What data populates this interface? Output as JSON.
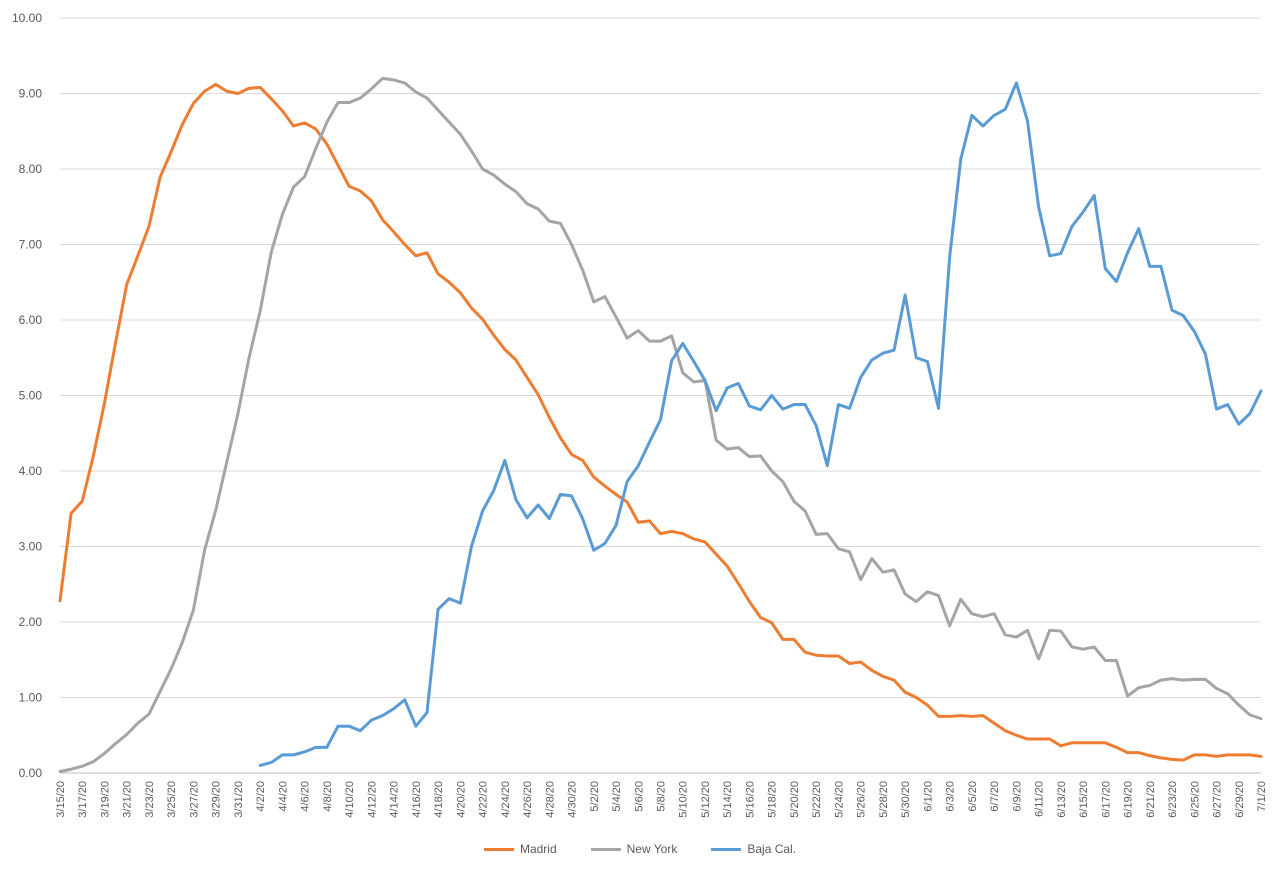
{
  "chart_data": {
    "type": "line",
    "title": "",
    "xlabel": "",
    "ylabel": "",
    "ylim": [
      0,
      10
    ],
    "y_ticks": [
      "0.00",
      "1.00",
      "2.00",
      "3.00",
      "4.00",
      "5.00",
      "6.00",
      "7.00",
      "8.00",
      "9.00",
      "10.00"
    ],
    "grid": "horizontal",
    "legend_position": "bottom",
    "x_start": "3/15/20",
    "x_tick_labels": [
      "3/15/20",
      "3/17/20",
      "3/19/20",
      "3/21/20",
      "3/23/20",
      "3/25/20",
      "3/27/20",
      "3/29/20",
      "3/31/20",
      "4/2/20",
      "4/4/20",
      "4/6/20",
      "4/8/20",
      "4/10/20",
      "4/12/20",
      "4/14/20",
      "4/16/20",
      "4/18/20",
      "4/20/20",
      "4/22/20",
      "4/24/20",
      "4/26/20",
      "4/28/20",
      "4/30/20",
      "5/2/20",
      "5/4/20",
      "5/6/20",
      "5/8/20",
      "5/10/20",
      "5/12/20",
      "5/14/20",
      "5/16/20",
      "5/18/20",
      "5/20/20",
      "5/22/20",
      "5/24/20",
      "5/26/20",
      "5/28/20",
      "5/30/20",
      "6/1/20",
      "6/3/20",
      "6/5/20",
      "6/7/20",
      "6/9/20",
      "6/11/20",
      "6/13/20",
      "6/15/20",
      "6/17/20",
      "6/19/20",
      "6/21/20",
      "6/23/20",
      "6/25/20",
      "6/27/20",
      "6/29/20",
      "7/1/20"
    ],
    "series": [
      {
        "name": "Madrid",
        "color": "#ED7D31",
        "start_index": 0,
        "values": [
          2.28,
          3.44,
          3.6,
          4.2,
          4.9,
          5.7,
          6.47,
          6.85,
          7.24,
          7.89,
          8.23,
          8.59,
          8.87,
          9.03,
          9.12,
          9.03,
          9.0,
          9.07,
          9.08,
          8.93,
          8.77,
          8.57,
          8.61,
          8.53,
          8.33,
          8.05,
          7.77,
          7.71,
          7.58,
          7.33,
          7.17,
          7.0,
          6.85,
          6.89,
          6.61,
          6.5,
          6.36,
          6.16,
          6.01,
          5.8,
          5.61,
          5.47,
          5.24,
          5.01,
          4.71,
          4.44,
          4.22,
          4.14,
          3.92,
          3.8,
          3.69,
          3.59,
          3.32,
          3.34,
          3.17,
          3.2,
          3.17,
          3.1,
          3.06,
          2.9,
          2.74,
          2.51,
          2.27,
          2.06,
          1.99,
          1.77,
          1.77,
          1.6,
          1.56,
          1.55,
          1.55,
          1.45,
          1.47,
          1.36,
          1.28,
          1.23,
          1.07,
          1.0,
          0.9,
          0.75,
          0.75,
          0.76,
          0.75,
          0.76,
          0.66,
          0.56,
          0.5,
          0.45,
          0.45,
          0.45,
          0.36,
          0.4,
          0.4,
          0.4,
          0.4,
          0.34,
          0.27,
          0.27,
          0.23,
          0.2,
          0.18,
          0.17,
          0.24,
          0.24,
          0.22,
          0.24,
          0.24,
          0.24,
          0.22
        ]
      },
      {
        "name": "New York",
        "color": "#A5A5A5",
        "start_index": 0,
        "values": [
          0.02,
          0.05,
          0.09,
          0.15,
          0.26,
          0.39,
          0.51,
          0.66,
          0.78,
          1.08,
          1.38,
          1.73,
          2.16,
          2.95,
          3.48,
          4.12,
          4.76,
          5.5,
          6.12,
          6.9,
          7.4,
          7.76,
          7.9,
          8.27,
          8.62,
          8.88,
          8.88,
          8.94,
          9.06,
          9.2,
          9.18,
          9.14,
          9.02,
          8.94,
          8.78,
          8.62,
          8.46,
          8.24,
          8.0,
          7.92,
          7.8,
          7.7,
          7.54,
          7.47,
          7.31,
          7.28,
          7.0,
          6.66,
          6.24,
          6.31,
          6.04,
          5.76,
          5.86,
          5.72,
          5.72,
          5.79,
          5.3,
          5.18,
          5.2,
          4.41,
          4.29,
          4.31,
          4.19,
          4.2,
          4.0,
          3.86,
          3.6,
          3.47,
          3.16,
          3.17,
          2.97,
          2.93,
          2.56,
          2.84,
          2.66,
          2.69,
          2.37,
          2.27,
          2.4,
          2.35,
          1.95,
          2.3,
          2.11,
          2.07,
          2.11,
          1.83,
          1.8,
          1.89,
          1.51,
          1.89,
          1.88,
          1.67,
          1.64,
          1.67,
          1.49,
          1.49,
          1.02,
          1.13,
          1.16,
          1.23,
          1.25,
          1.23,
          1.24,
          1.24,
          1.12,
          1.05,
          0.9,
          0.77,
          0.72
        ]
      },
      {
        "name": "Baja Cal.",
        "color": "#5B9BD5",
        "start_index": 18,
        "values": [
          0.1,
          0.14,
          0.24,
          0.24,
          0.28,
          0.34,
          0.34,
          0.62,
          0.62,
          0.56,
          0.7,
          0.76,
          0.85,
          0.97,
          0.62,
          0.8,
          2.17,
          2.31,
          2.25,
          3.0,
          3.47,
          3.74,
          4.14,
          3.62,
          3.38,
          3.55,
          3.37,
          3.69,
          3.67,
          3.37,
          2.95,
          3.04,
          3.28,
          3.86,
          4.07,
          4.38,
          4.68,
          5.46,
          5.69,
          5.45,
          5.2,
          4.8,
          5.1,
          5.16,
          4.86,
          4.81,
          5.0,
          4.82,
          4.88,
          4.88,
          4.6,
          4.07,
          4.88,
          4.83,
          5.24,
          5.47,
          5.56,
          5.6,
          6.33,
          5.5,
          5.45,
          4.83,
          6.83,
          8.13,
          8.71,
          8.57,
          8.71,
          8.79,
          9.14,
          8.64,
          7.5,
          6.85,
          6.88,
          7.24,
          7.43,
          7.65,
          6.68,
          6.51,
          6.89,
          7.21,
          6.71,
          6.71,
          6.13,
          6.06,
          5.85,
          5.55,
          4.82,
          4.88,
          4.62,
          4.76,
          5.06
        ]
      }
    ]
  }
}
